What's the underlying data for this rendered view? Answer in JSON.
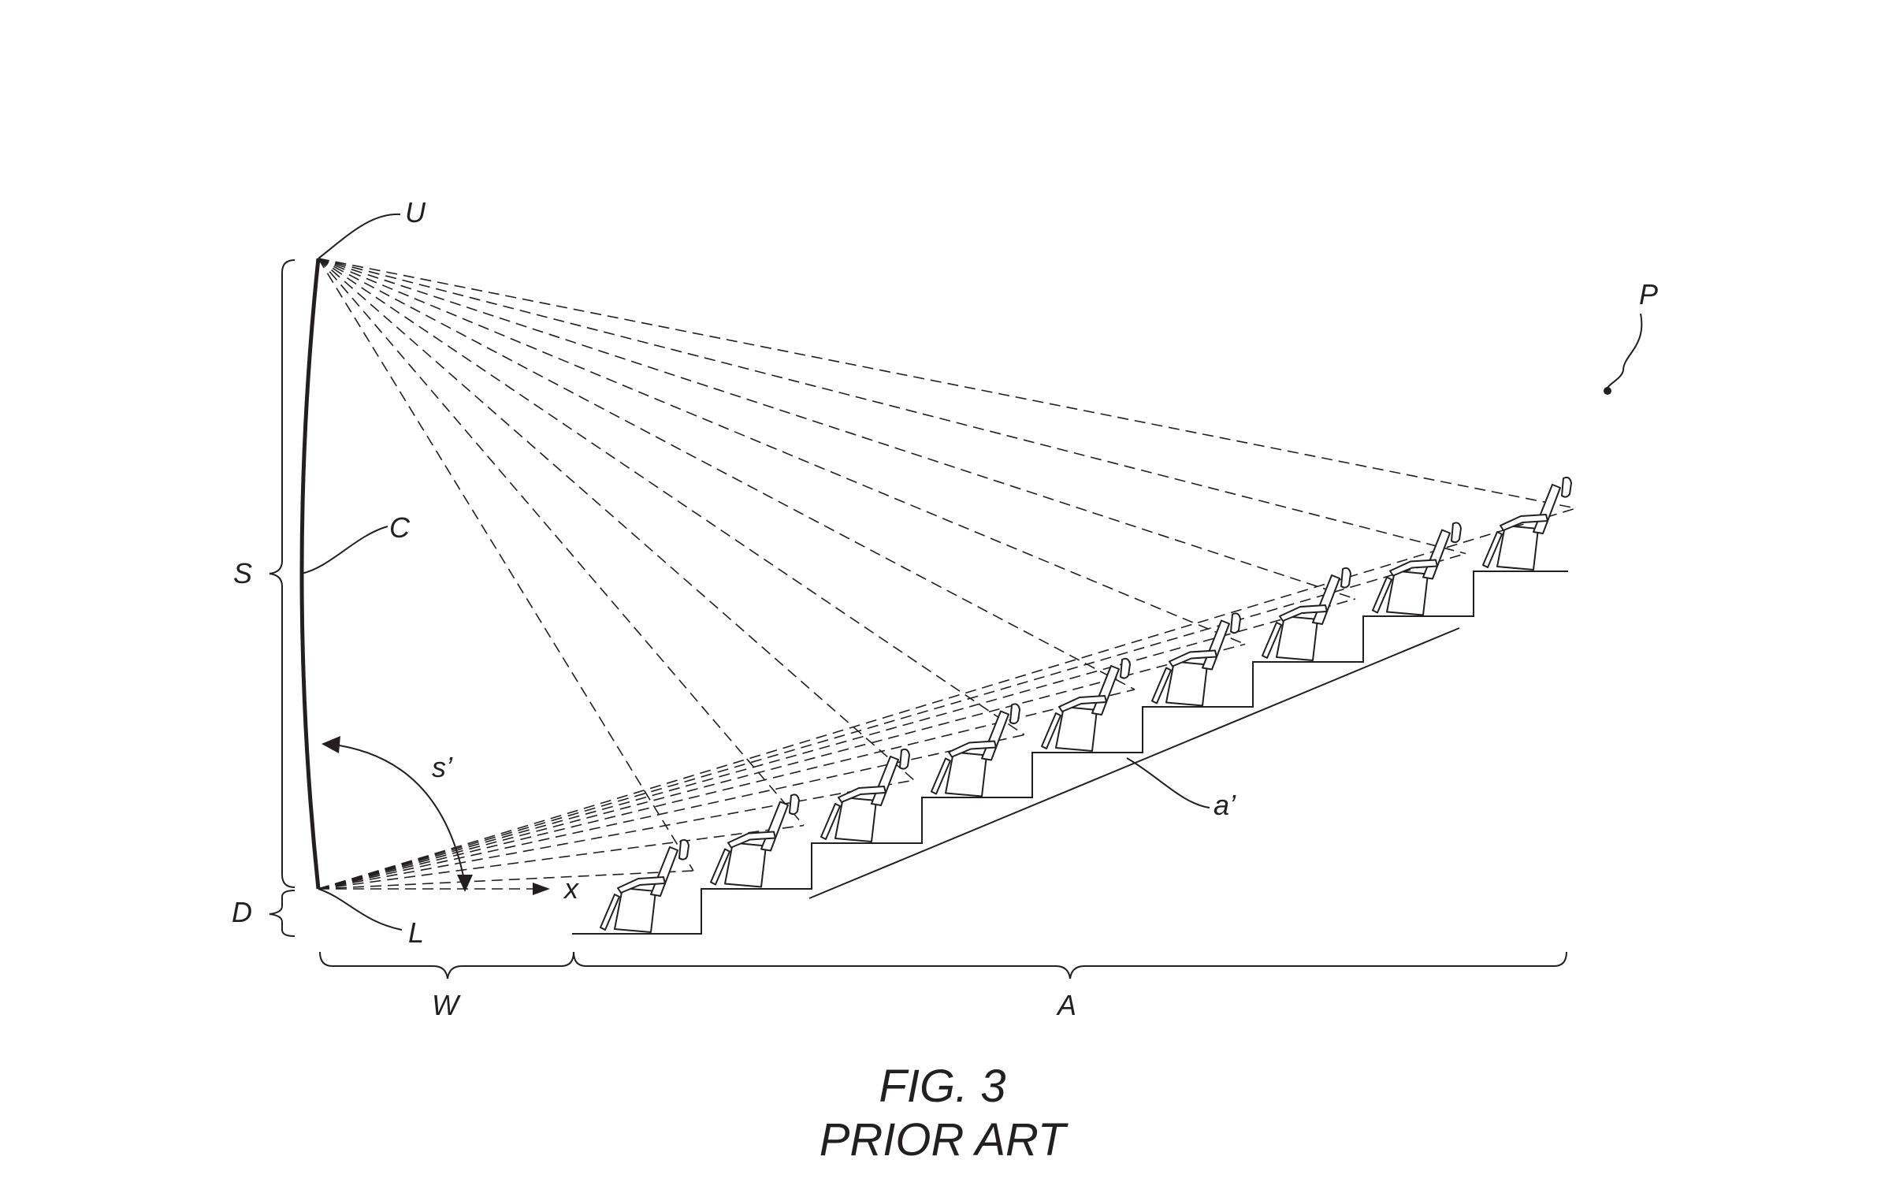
{
  "labels": {
    "U": "U",
    "C": "C",
    "S": "S",
    "D": "D",
    "L": "L",
    "P": "P",
    "s_prime": "s’",
    "x": "x",
    "a_prime": "a’",
    "W": "W",
    "A": "A"
  },
  "caption": {
    "line1": "FIG. 3",
    "line2": "PRIOR ART"
  }
}
